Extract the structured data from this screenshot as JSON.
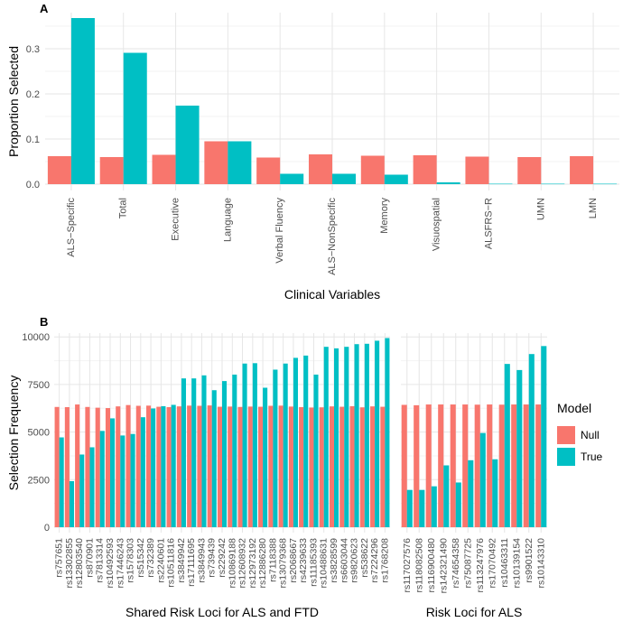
{
  "legend": {
    "title": "Model",
    "entries": [
      {
        "label": "Null",
        "color": "#F8766D"
      },
      {
        "label": "True",
        "color": "#00BFC4"
      }
    ]
  },
  "chart_data": [
    {
      "type": "bar",
      "panel_label": "A",
      "xlabel": "Clinical Variables",
      "ylabel": "Proportion Selected",
      "ylim": [
        0,
        0.38
      ],
      "yticks": [
        0.0,
        0.1,
        0.2,
        0.3
      ],
      "ytick_labels": [
        "0.0",
        "0.1",
        "0.2",
        "0.3"
      ],
      "categories": [
        "ALS−Specific",
        "Total",
        "Executive",
        "Language",
        "Verbal Fluency",
        "ALS−NonSpecific",
        "Memory",
        "Visuospatial",
        "ALSFRS−R",
        "UMN",
        "LMN"
      ],
      "series": [
        {
          "name": "Null",
          "color": "#F8766D",
          "values": [
            0.062,
            0.06,
            0.065,
            0.095,
            0.059,
            0.066,
            0.063,
            0.064,
            0.061,
            0.06,
            0.062
          ]
        },
        {
          "name": "True",
          "color": "#00BFC4",
          "values": [
            0.368,
            0.291,
            0.174,
            0.095,
            0.023,
            0.023,
            0.021,
            0.004,
            0.001,
            0.001,
            0.001
          ]
        }
      ]
    },
    {
      "type": "bar",
      "panel_label": "B",
      "ylabel": "Selection Frequency",
      "ylim": [
        0,
        10200
      ],
      "yticks": [
        0,
        2500,
        5000,
        7500,
        10000
      ],
      "ytick_labels": [
        "0",
        "2500",
        "5000",
        "7500",
        "10000"
      ],
      "facets": [
        {
          "xlabel": "Shared Risk Loci for ALS and FTD",
          "categories": [
            "rs757651",
            "rs13302855",
            "rs12803540",
            "rs870901",
            "rs7813314",
            "rs10492593",
            "rs17446243",
            "rs1578303",
            "rs515342",
            "rs732389",
            "rs2240601",
            "rs10511816",
            "rs3849942",
            "rs17111695",
            "rs3849943",
            "rs739439",
            "rs229242",
            "rs10869188",
            "rs12608932",
            "rs12973192",
            "rs12886280",
            "rs7118388",
            "rs13079368",
            "rs2068667",
            "rs4239633",
            "rs11185393",
            "rs10488631",
            "rs3828599",
            "rs6603044",
            "rs9820623",
            "rs538622",
            "rs7224296",
            "rs1768208"
          ],
          "series": [
            {
              "name": "Null",
              "color": "#F8766D",
              "values": [
                6320,
                6310,
                6450,
                6320,
                6280,
                6260,
                6350,
                6420,
                6380,
                6390,
                6330,
                6310,
                6350,
                6390,
                6380,
                6400,
                6330,
                6340,
                6320,
                6340,
                6330,
                6380,
                6390,
                6340,
                6310,
                6290,
                6300,
                6350,
                6330,
                6360,
                6300,
                6350,
                6330
              ]
            },
            {
              "name": "True",
              "color": "#00BFC4",
              "values": [
                4720,
                2420,
                3820,
                4200,
                5060,
                5720,
                4820,
                4900,
                5780,
                6240,
                6360,
                6430,
                7820,
                7820,
                7980,
                7200,
                7680,
                8020,
                8600,
                8620,
                7330,
                8280,
                8600,
                8900,
                9020,
                8020,
                9480,
                9400,
                9480,
                9620,
                9640,
                9800,
                9940
              ]
            }
          ]
        },
        {
          "xlabel": "Risk Loci for ALS",
          "categories": [
            "rs117027576",
            "rs118082508",
            "rs116900480",
            "rs142321490",
            "rs74654358",
            "rs75087725",
            "rs113247976",
            "rs17070492",
            "rs10463311",
            "rs10139154",
            "rs9901522",
            "rs10143310"
          ],
          "series": [
            {
              "name": "Null",
              "color": "#F8766D",
              "values": [
                6430,
                6410,
                6450,
                6450,
                6450,
                6450,
                6440,
                6450,
                6440,
                6450,
                6450,
                6450
              ]
            },
            {
              "name": "True",
              "color": "#00BFC4",
              "values": [
                1960,
                1960,
                2150,
                3250,
                2350,
                3520,
                4950,
                3570,
                8580,
                8260,
                9100,
                9520
              ]
            }
          ]
        }
      ]
    }
  ]
}
